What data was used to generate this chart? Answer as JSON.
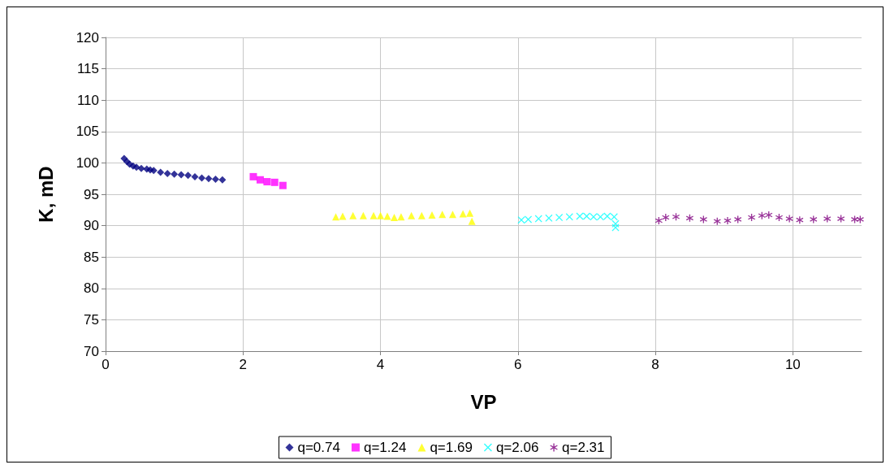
{
  "chart_data": {
    "type": "scatter",
    "xlabel": "VP",
    "ylabel": "K, mD",
    "xlim": [
      0,
      11
    ],
    "xticks": [
      0,
      2,
      4,
      6,
      8,
      10
    ],
    "ylim": [
      70,
      120
    ],
    "yticks": [
      70,
      75,
      80,
      85,
      90,
      95,
      100,
      105,
      110,
      115,
      120
    ],
    "grid": true,
    "legend": "bottom",
    "series": [
      {
        "name": "q=0.74",
        "color": "#000080",
        "marker": "diamond",
        "x": [
          0.27,
          0.31,
          0.35,
          0.4,
          0.45,
          0.52,
          0.6,
          0.65,
          0.7,
          0.8,
          0.9,
          1.0,
          1.1,
          1.2,
          1.3,
          1.4,
          1.5,
          1.6,
          1.7
        ],
        "values": [
          100.7,
          100.2,
          99.8,
          99.5,
          99.3,
          99.1,
          99.0,
          98.9,
          98.8,
          98.5,
          98.3,
          98.2,
          98.1,
          98.0,
          97.8,
          97.6,
          97.5,
          97.4,
          97.3
        ]
      },
      {
        "name": "q=1.24",
        "color": "#ff00ff",
        "marker": "square",
        "x": [
          2.15,
          2.25,
          2.35,
          2.46,
          2.58
        ],
        "values": [
          97.8,
          97.3,
          97.0,
          96.9,
          96.4
        ]
      },
      {
        "name": "q=1.69",
        "color": "#ffff00",
        "marker": "triangle",
        "x": [
          3.35,
          3.45,
          3.6,
          3.75,
          3.9,
          4.0,
          4.1,
          4.2,
          4.3,
          4.45,
          4.6,
          4.75,
          4.9,
          5.05,
          5.2,
          5.3,
          5.33
        ],
        "values": [
          91.4,
          91.5,
          91.6,
          91.6,
          91.6,
          91.6,
          91.5,
          91.3,
          91.4,
          91.6,
          91.6,
          91.7,
          91.8,
          91.8,
          91.9,
          92.0,
          90.7
        ]
      },
      {
        "name": "q=2.06",
        "color": "#00ffff",
        "marker": "cross",
        "x": [
          6.05,
          6.15,
          6.3,
          6.45,
          6.6,
          6.75,
          6.9,
          7.0,
          7.1,
          7.2,
          7.3,
          7.4,
          7.42,
          7.42
        ],
        "values": [
          90.9,
          91.0,
          91.1,
          91.2,
          91.3,
          91.4,
          91.5,
          91.5,
          91.4,
          91.4,
          91.5,
          91.4,
          90.3,
          89.7
        ]
      },
      {
        "name": "q=2.31",
        "color": "#800080",
        "marker": "star",
        "x": [
          8.05,
          8.15,
          8.3,
          8.5,
          8.7,
          8.9,
          9.05,
          9.2,
          9.4,
          9.55,
          9.65,
          9.8,
          9.95,
          10.1,
          10.3,
          10.5,
          10.7,
          10.9,
          10.98
        ],
        "values": [
          90.8,
          91.3,
          91.4,
          91.2,
          91.0,
          90.7,
          90.8,
          91.0,
          91.3,
          91.6,
          91.7,
          91.3,
          91.1,
          90.9,
          91.0,
          91.1,
          91.1,
          91.0,
          91.0
        ]
      }
    ]
  }
}
